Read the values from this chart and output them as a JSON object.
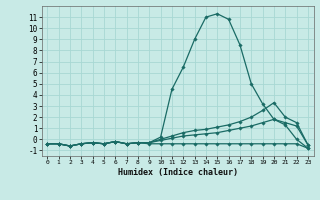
{
  "xlabel": "Humidex (Indice chaleur)",
  "xlim": [
    -0.5,
    23.5
  ],
  "ylim": [
    -1.5,
    12.0
  ],
  "xticks": [
    0,
    1,
    2,
    3,
    4,
    5,
    6,
    7,
    8,
    9,
    10,
    11,
    12,
    13,
    14,
    15,
    16,
    17,
    18,
    19,
    20,
    21,
    22,
    23
  ],
  "yticks": [
    -1,
    0,
    1,
    2,
    3,
    4,
    5,
    6,
    7,
    8,
    9,
    10,
    11
  ],
  "bg_color": "#c8eae6",
  "grid_color": "#a8d8d4",
  "line_color": "#1a6b65",
  "lines": [
    {
      "x": [
        0,
        1,
        2,
        3,
        4,
        5,
        6,
        7,
        8,
        9,
        10,
        11,
        12,
        13,
        14,
        15,
        16,
        17,
        18,
        19,
        20,
        21,
        22,
        23
      ],
      "y": [
        -0.4,
        -0.4,
        -0.6,
        -0.4,
        -0.3,
        -0.4,
        -0.2,
        -0.4,
        -0.3,
        -0.3,
        0.2,
        4.5,
        6.5,
        9.0,
        11.0,
        11.3,
        10.8,
        8.5,
        5.0,
        3.2,
        1.8,
        1.3,
        0.0,
        -0.8
      ]
    },
    {
      "x": [
        0,
        1,
        2,
        3,
        4,
        5,
        6,
        7,
        8,
        9,
        10,
        11,
        12,
        13,
        14,
        15,
        16,
        17,
        18,
        19,
        20,
        21,
        22,
        23
      ],
      "y": [
        -0.4,
        -0.4,
        -0.6,
        -0.4,
        -0.3,
        -0.4,
        -0.2,
        -0.4,
        -0.3,
        -0.3,
        0.0,
        0.3,
        0.6,
        0.8,
        0.9,
        1.1,
        1.3,
        1.6,
        2.0,
        2.6,
        3.3,
        2.0,
        1.5,
        -0.5
      ]
    },
    {
      "x": [
        0,
        1,
        2,
        3,
        4,
        5,
        6,
        7,
        8,
        9,
        10,
        11,
        12,
        13,
        14,
        15,
        16,
        17,
        18,
        19,
        20,
        21,
        22,
        23
      ],
      "y": [
        -0.4,
        -0.4,
        -0.6,
        -0.4,
        -0.3,
        -0.4,
        -0.2,
        -0.4,
        -0.3,
        -0.3,
        -0.1,
        0.1,
        0.3,
        0.4,
        0.5,
        0.6,
        0.8,
        1.0,
        1.2,
        1.5,
        1.8,
        1.5,
        1.2,
        -0.5
      ]
    },
    {
      "x": [
        0,
        1,
        2,
        3,
        4,
        5,
        6,
        7,
        8,
        9,
        10,
        11,
        12,
        13,
        14,
        15,
        16,
        17,
        18,
        19,
        20,
        21,
        22,
        23
      ],
      "y": [
        -0.4,
        -0.4,
        -0.6,
        -0.4,
        -0.3,
        -0.4,
        -0.2,
        -0.4,
        -0.3,
        -0.4,
        -0.4,
        -0.4,
        -0.4,
        -0.4,
        -0.4,
        -0.4,
        -0.4,
        -0.4,
        -0.4,
        -0.4,
        -0.4,
        -0.4,
        -0.4,
        -0.8
      ]
    }
  ]
}
